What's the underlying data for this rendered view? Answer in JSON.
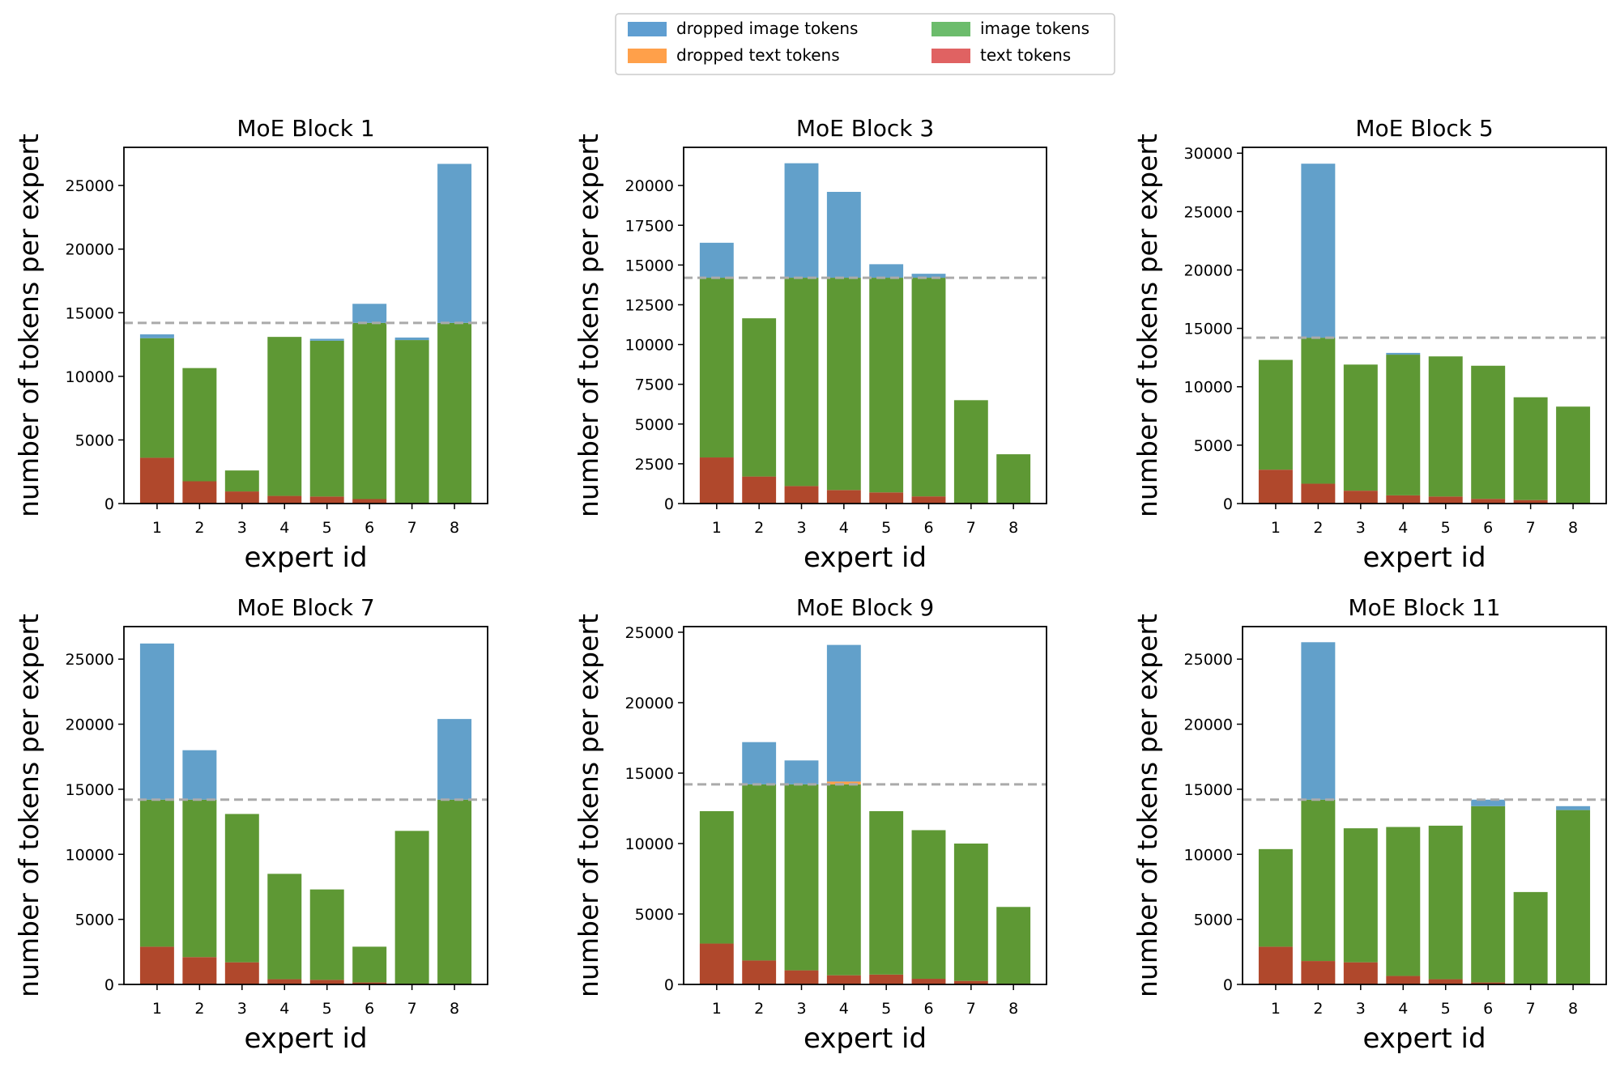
{
  "chart_data": {
    "type": "bar",
    "stacking": "stacked: text, image, dropped text, dropped image",
    "legend": {
      "placement": "top-center",
      "entries": [
        {
          "key": "dropped_image",
          "label": "dropped image tokens",
          "color": "#5f9ed1"
        },
        {
          "key": "image",
          "label": "image tokens",
          "color": "#6cbc6c"
        },
        {
          "key": "dropped_text",
          "label": "dropped text tokens",
          "color": "#ffa04a"
        },
        {
          "key": "text",
          "label": "text tokens",
          "color": "#e06262"
        }
      ]
    },
    "bar_colors": {
      "dropped_image": "#62a0ca",
      "image": "#5e9834",
      "dropped_text": "#ff9f4a",
      "text": "#b0482c"
    },
    "capacity_line": {
      "value": 14200,
      "color": "#aaaaaa",
      "style": "dashed"
    },
    "categories": [
      "1",
      "2",
      "3",
      "4",
      "5",
      "6",
      "7",
      "8"
    ],
    "xlabel": "expert id",
    "ylabel": "number of tokens per expert",
    "panels": [
      {
        "title": "MoE Block 1",
        "ylim": [
          0,
          28000
        ],
        "yticks": [
          "0",
          "5000",
          "10000",
          "15000",
          "20000",
          "25000"
        ],
        "ytick_values": [
          0,
          5000,
          10000,
          15000,
          20000,
          25000
        ],
        "text": [
          3600,
          1750,
          950,
          600,
          550,
          350,
          50,
          0
        ],
        "image": [
          9400,
          8900,
          1650,
          12500,
          12250,
          13850,
          12800,
          14200
        ],
        "dropped_text": [
          0,
          0,
          0,
          0,
          0,
          0,
          0,
          0
        ],
        "dropped_image": [
          300,
          0,
          0,
          0,
          150,
          1500,
          200,
          12500
        ]
      },
      {
        "title": "MoE Block 3",
        "ylim": [
          0,
          22400
        ],
        "yticks": [
          "0",
          "2500",
          "5000",
          "7500",
          "10000",
          "12500",
          "15000",
          "17500",
          "20000"
        ],
        "ytick_values": [
          0,
          2500,
          5000,
          7500,
          10000,
          12500,
          15000,
          17500,
          20000
        ],
        "text": [
          2900,
          1700,
          1100,
          850,
          700,
          450,
          50,
          0
        ],
        "image": [
          11300,
          9950,
          13100,
          13350,
          13500,
          13750,
          6450,
          3100
        ],
        "dropped_text": [
          0,
          0,
          0,
          0,
          0,
          0,
          0,
          0
        ],
        "dropped_image": [
          2200,
          0,
          7200,
          5400,
          850,
          250,
          0,
          0
        ]
      },
      {
        "title": "MoE Block 5",
        "ylim": [
          0,
          30500
        ],
        "yticks": [
          "0",
          "5000",
          "10000",
          "15000",
          "20000",
          "25000",
          "30000"
        ],
        "ytick_values": [
          0,
          5000,
          10000,
          15000,
          20000,
          25000,
          30000
        ],
        "text": [
          2900,
          1700,
          1100,
          700,
          600,
          400,
          300,
          50
        ],
        "image": [
          9400,
          12500,
          10800,
          12050,
          12000,
          11400,
          8800,
          8250
        ],
        "dropped_text": [
          0,
          0,
          0,
          0,
          0,
          0,
          0,
          0
        ],
        "dropped_image": [
          0,
          14900,
          0,
          150,
          0,
          0,
          0,
          0
        ]
      },
      {
        "title": "MoE Block 7",
        "ylim": [
          0,
          27500
        ],
        "yticks": [
          "0",
          "5000",
          "10000",
          "15000",
          "20000",
          "25000"
        ],
        "ytick_values": [
          0,
          5000,
          10000,
          15000,
          20000,
          25000
        ],
        "text": [
          2900,
          2100,
          1700,
          400,
          350,
          150,
          50,
          0
        ],
        "image": [
          11300,
          12100,
          11400,
          8100,
          6950,
          2750,
          11750,
          14200
        ],
        "dropped_text": [
          0,
          0,
          0,
          0,
          0,
          0,
          0,
          0
        ],
        "dropped_image": [
          12000,
          3800,
          0,
          0,
          0,
          0,
          0,
          6200
        ]
      },
      {
        "title": "MoE Block 9",
        "ylim": [
          0,
          25400
        ],
        "yticks": [
          "0",
          "5000",
          "10000",
          "15000",
          "20000",
          "25000"
        ],
        "ytick_values": [
          0,
          5000,
          10000,
          15000,
          20000,
          25000
        ],
        "text": [
          2900,
          1700,
          1000,
          650,
          700,
          400,
          250,
          50
        ],
        "image": [
          9400,
          12500,
          13200,
          13550,
          11600,
          10550,
          9750,
          5450
        ],
        "dropped_text": [
          0,
          0,
          0,
          200,
          0,
          0,
          0,
          0
        ],
        "dropped_image": [
          0,
          3000,
          1700,
          9700,
          0,
          0,
          0,
          0
        ]
      },
      {
        "title": "MoE Block 11",
        "ylim": [
          0,
          27500
        ],
        "yticks": [
          "0",
          "5000",
          "10000",
          "15000",
          "20000",
          "25000"
        ],
        "ytick_values": [
          0,
          5000,
          10000,
          15000,
          20000,
          25000
        ],
        "text": [
          2900,
          1800,
          1700,
          650,
          400,
          150,
          50,
          0
        ],
        "image": [
          7500,
          12400,
          10300,
          11450,
          11800,
          13550,
          7050,
          13400
        ],
        "dropped_text": [
          0,
          0,
          0,
          0,
          0,
          0,
          0,
          0
        ],
        "dropped_image": [
          0,
          12100,
          0,
          0,
          0,
          500,
          0,
          300
        ]
      }
    ]
  }
}
